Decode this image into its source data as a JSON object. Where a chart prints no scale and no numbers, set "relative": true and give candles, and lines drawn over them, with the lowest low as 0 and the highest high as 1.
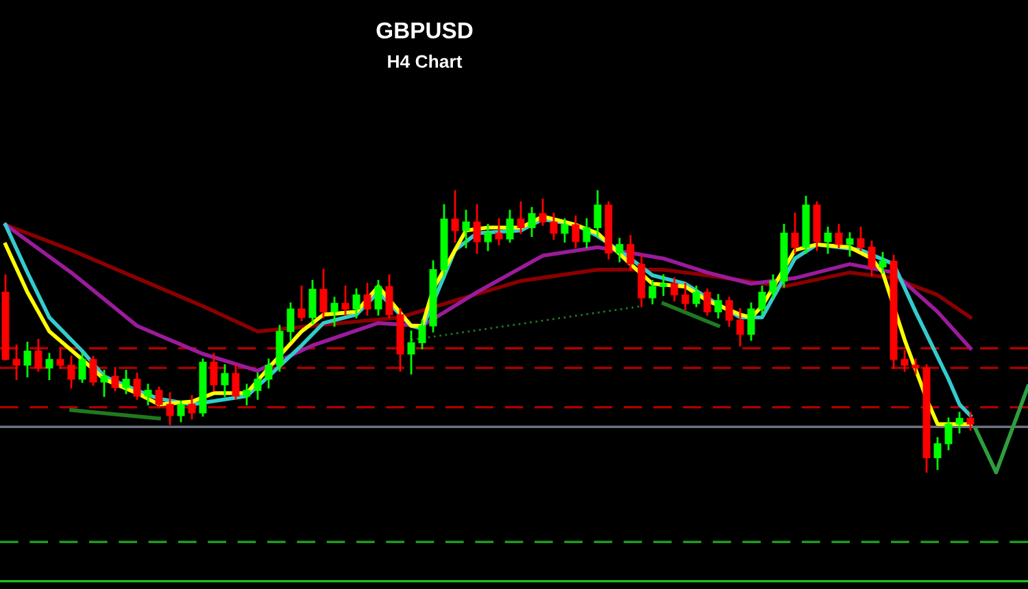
{
  "chart_data": {
    "type": "candlestick",
    "title": "GBPUSD",
    "subtitle": "H4 Chart",
    "relative": true,
    "categories": [
      null,
      null,
      null,
      null,
      null,
      null,
      null,
      null,
      null,
      null,
      null,
      null,
      null,
      null,
      null,
      null,
      null,
      null,
      null,
      null,
      null,
      null,
      null,
      null,
      null,
      null,
      null,
      null,
      null,
      null,
      null,
      null,
      null,
      null,
      null,
      null,
      null,
      null,
      null,
      null,
      null,
      null,
      null,
      null,
      null,
      null,
      null,
      null,
      null,
      null,
      null,
      null,
      null,
      null,
      null,
      null,
      null,
      null,
      null,
      null,
      null,
      null,
      null,
      null,
      null,
      null,
      null,
      null,
      null,
      null,
      null,
      null,
      null,
      null,
      null,
      null,
      null,
      null,
      null,
      null,
      null,
      null,
      null,
      null,
      null,
      null,
      null,
      null,
      null
    ],
    "ohlc": [
      [
        0.64,
        0.7,
        0.4,
        0.4
      ],
      [
        0.4,
        0.45,
        0.33,
        0.38
      ],
      [
        0.38,
        0.46,
        0.34,
        0.43
      ],
      [
        0.43,
        0.47,
        0.36,
        0.37
      ],
      [
        0.37,
        0.42,
        0.33,
        0.4
      ],
      [
        0.4,
        0.44,
        0.37,
        0.38
      ],
      [
        0.38,
        0.41,
        0.3,
        0.33
      ],
      [
        0.33,
        0.42,
        0.32,
        0.4
      ],
      [
        0.4,
        0.41,
        0.31,
        0.32
      ],
      [
        0.32,
        0.36,
        0.27,
        0.34
      ],
      [
        0.34,
        0.37,
        0.29,
        0.3
      ],
      [
        0.3,
        0.36,
        0.28,
        0.33
      ],
      [
        0.33,
        0.35,
        0.26,
        0.27
      ],
      [
        0.27,
        0.31,
        0.24,
        0.29
      ],
      [
        0.29,
        0.3,
        0.23,
        0.24
      ],
      [
        0.24,
        0.28,
        0.17,
        0.2
      ],
      [
        0.2,
        0.25,
        0.18,
        0.24
      ],
      [
        0.24,
        0.27,
        0.19,
        0.21
      ],
      [
        0.21,
        0.4,
        0.2,
        0.39
      ],
      [
        0.39,
        0.42,
        0.29,
        0.31
      ],
      [
        0.31,
        0.38,
        0.27,
        0.35
      ],
      [
        0.35,
        0.38,
        0.26,
        0.27
      ],
      [
        0.27,
        0.31,
        0.24,
        0.29
      ],
      [
        0.29,
        0.35,
        0.26,
        0.33
      ],
      [
        0.33,
        0.4,
        0.3,
        0.38
      ],
      [
        0.38,
        0.52,
        0.36,
        0.5
      ],
      [
        0.5,
        0.6,
        0.47,
        0.58
      ],
      [
        0.58,
        0.66,
        0.54,
        0.55
      ],
      [
        0.55,
        0.68,
        0.53,
        0.65
      ],
      [
        0.65,
        0.72,
        0.55,
        0.57
      ],
      [
        0.57,
        0.62,
        0.52,
        0.6
      ],
      [
        0.6,
        0.66,
        0.56,
        0.58
      ],
      [
        0.58,
        0.65,
        0.55,
        0.63
      ],
      [
        0.63,
        0.67,
        0.56,
        0.58
      ],
      [
        0.58,
        0.68,
        0.56,
        0.66
      ],
      [
        0.66,
        0.7,
        0.55,
        0.56
      ],
      [
        0.56,
        0.58,
        0.36,
        0.42
      ],
      [
        0.42,
        0.5,
        0.35,
        0.46
      ],
      [
        0.46,
        0.54,
        0.44,
        0.52
      ],
      [
        0.52,
        0.75,
        0.5,
        0.72
      ],
      [
        0.72,
        0.95,
        0.7,
        0.9
      ],
      [
        0.9,
        1.0,
        0.82,
        0.86
      ],
      [
        0.86,
        0.93,
        0.8,
        0.89
      ],
      [
        0.89,
        0.95,
        0.78,
        0.82
      ],
      [
        0.82,
        0.88,
        0.79,
        0.85
      ],
      [
        0.85,
        0.9,
        0.81,
        0.83
      ],
      [
        0.83,
        0.93,
        0.82,
        0.9
      ],
      [
        0.9,
        0.96,
        0.85,
        0.87
      ],
      [
        0.87,
        0.94,
        0.84,
        0.92
      ],
      [
        0.92,
        0.97,
        0.88,
        0.89
      ],
      [
        0.89,
        0.92,
        0.83,
        0.85
      ],
      [
        0.85,
        0.9,
        0.82,
        0.88
      ],
      [
        0.88,
        0.91,
        0.8,
        0.82
      ],
      [
        0.82,
        0.9,
        0.8,
        0.87
      ],
      [
        0.87,
        1.0,
        0.84,
        0.95
      ],
      [
        0.95,
        0.96,
        0.76,
        0.78
      ],
      [
        0.78,
        0.83,
        0.75,
        0.81
      ],
      [
        0.81,
        0.84,
        0.72,
        0.74
      ],
      [
        0.74,
        0.77,
        0.59,
        0.62
      ],
      [
        0.62,
        0.68,
        0.6,
        0.66
      ],
      [
        0.66,
        0.7,
        0.63,
        0.67
      ],
      [
        0.67,
        0.69,
        0.61,
        0.63
      ],
      [
        0.63,
        0.67,
        0.58,
        0.6
      ],
      [
        0.6,
        0.66,
        0.59,
        0.64
      ],
      [
        0.64,
        0.65,
        0.56,
        0.57
      ],
      [
        0.57,
        0.63,
        0.55,
        0.61
      ],
      [
        0.61,
        0.62,
        0.52,
        0.54
      ],
      [
        0.54,
        0.58,
        0.45,
        0.49
      ],
      [
        0.49,
        0.6,
        0.47,
        0.58
      ],
      [
        0.58,
        0.66,
        0.56,
        0.64
      ],
      [
        0.64,
        0.7,
        0.62,
        0.68
      ],
      [
        0.68,
        0.88,
        0.66,
        0.85
      ],
      [
        0.85,
        0.92,
        0.78,
        0.8
      ],
      [
        0.8,
        0.98,
        0.78,
        0.95
      ],
      [
        0.95,
        0.96,
        0.79,
        0.82
      ],
      [
        0.82,
        0.87,
        0.78,
        0.85
      ],
      [
        0.85,
        0.88,
        0.8,
        0.81
      ],
      [
        0.81,
        0.85,
        0.77,
        0.83
      ],
      [
        0.83,
        0.87,
        0.79,
        0.8
      ],
      [
        0.8,
        0.82,
        0.7,
        0.73
      ],
      [
        0.73,
        0.78,
        0.71,
        0.75
      ],
      [
        0.75,
        0.77,
        0.37,
        0.4
      ],
      [
        0.4,
        0.43,
        0.36,
        0.38
      ],
      [
        0.38,
        0.4,
        0.35,
        0.37
      ],
      [
        0.37,
        0.38,
        0.0,
        0.05
      ],
      [
        0.05,
        0.12,
        0.01,
        0.1
      ],
      [
        0.1,
        0.19,
        0.08,
        0.17
      ],
      [
        0.17,
        0.21,
        0.14,
        0.19
      ],
      [
        0.19,
        0.21,
        0.15,
        0.17
      ]
    ],
    "series": [
      {
        "type": "line",
        "color": "#8b0000",
        "values": [
          0.88,
          null,
          null,
          null,
          null,
          null,
          0.79,
          null,
          null,
          null,
          null,
          null,
          0.69,
          null,
          null,
          null,
          null,
          null,
          0.59,
          null,
          null,
          null,
          null,
          0.5,
          null,
          null,
          null,
          null,
          0.52,
          null,
          null,
          null,
          null,
          null,
          null,
          null,
          0.55,
          null,
          null,
          null,
          null,
          0.61,
          null,
          null,
          null,
          null,
          null,
          0.68,
          null,
          null,
          null,
          null,
          null,
          null,
          0.72,
          null,
          null,
          null,
          null,
          null,
          0.72,
          null,
          null,
          null,
          0.7,
          null,
          null,
          null,
          null,
          null,
          null,
          0.66,
          null,
          null,
          null,
          null,
          null,
          0.71,
          null,
          null,
          null,
          0.69,
          null,
          null,
          null,
          0.63,
          null,
          null,
          0.55
        ]
      },
      {
        "type": "line",
        "color": "#9b1b9b",
        "values": [
          0.88,
          null,
          null,
          null,
          null,
          null,
          0.71,
          null,
          null,
          null,
          null,
          null,
          0.52,
          null,
          null,
          null,
          null,
          null,
          0.42,
          null,
          null,
          null,
          null,
          0.36,
          null,
          null,
          null,
          null,
          0.45,
          null,
          null,
          null,
          null,
          null,
          0.53,
          null,
          null,
          null,
          0.52,
          null,
          null,
          null,
          null,
          0.64,
          null,
          null,
          null,
          null,
          null,
          0.77,
          null,
          null,
          null,
          null,
          0.8,
          null,
          null,
          null,
          null,
          null,
          0.76,
          null,
          null,
          null,
          0.71,
          null,
          null,
          null,
          0.67,
          null,
          null,
          null,
          0.69,
          null,
          null,
          null,
          null,
          0.74,
          null,
          null,
          null,
          0.71,
          null,
          null,
          null,
          0.57,
          null,
          null,
          0.44
        ]
      },
      {
        "type": "line",
        "color": "#33cccc",
        "values": [
          0.88,
          null,
          0.71,
          null,
          0.55,
          null,
          null,
          0.43,
          null,
          0.34,
          null,
          null,
          0.29,
          null,
          0.26,
          null,
          null,
          0.24,
          null,
          null,
          null,
          null,
          0.27,
          null,
          0.34,
          null,
          null,
          0.45,
          null,
          0.53,
          null,
          null,
          0.56,
          null,
          0.64,
          null,
          null,
          0.52,
          0.51,
          null,
          null,
          0.79,
          null,
          0.85,
          null,
          null,
          null,
          0.86,
          null,
          0.9,
          null,
          null,
          0.88,
          null,
          0.84,
          null,
          null,
          0.76,
          null,
          0.7,
          null,
          null,
          0.67,
          null,
          0.62,
          null,
          null,
          0.55,
          null,
          0.55,
          null,
          null,
          0.76,
          null,
          0.81,
          null,
          null,
          null,
          0.79,
          null,
          null,
          0.74,
          null,
          0.57,
          null,
          null,
          0.33,
          0.24,
          0.2
        ]
      },
      {
        "type": "line",
        "color": "#ffff00",
        "values": [
          0.81,
          null,
          0.64,
          null,
          0.5,
          null,
          null,
          0.4,
          null,
          0.33,
          null,
          null,
          0.28,
          null,
          0.24,
          null,
          null,
          0.25,
          null,
          0.28,
          null,
          null,
          0.28,
          null,
          0.37,
          null,
          null,
          0.5,
          null,
          0.56,
          null,
          null,
          0.57,
          null,
          0.66,
          null,
          null,
          0.52,
          0.52,
          0.65,
          null,
          null,
          0.86,
          null,
          0.87,
          null,
          null,
          0.87,
          null,
          0.91,
          null,
          null,
          0.88,
          null,
          0.85,
          null,
          null,
          0.74,
          null,
          0.67,
          null,
          null,
          0.66,
          null,
          0.61,
          null,
          null,
          0.56,
          0.55,
          0.59,
          null,
          null,
          0.79,
          null,
          0.81,
          null,
          null,
          0.8,
          null,
          0.76,
          0.71,
          null,
          0.47,
          null,
          0.26,
          0.17,
          null,
          null,
          0.17
        ]
      },
      {
        "type": "line",
        "color": "#1f7a1f",
        "line_style": "dotted",
        "values": [
          null,
          null,
          null,
          null,
          null,
          null,
          null,
          null,
          null,
          null,
          null,
          null,
          null,
          null,
          null,
          null,
          null,
          null,
          null,
          null,
          null,
          null,
          null,
          null,
          null,
          null,
          null,
          null,
          null,
          null,
          null,
          null,
          null,
          null,
          null,
          null,
          null,
          0.47,
          null,
          null,
          null,
          null,
          null,
          null,
          null,
          null,
          null,
          null,
          null,
          null,
          null,
          null,
          null,
          null,
          null,
          null,
          null,
          null,
          0.59,
          null,
          null,
          null,
          null,
          null,
          null,
          null,
          null,
          null,
          null,
          null,
          null,
          null,
          null,
          null,
          null,
          null,
          null,
          null,
          null,
          null,
          null,
          null,
          null,
          null,
          null,
          null,
          null,
          null,
          null
        ]
      },
      {
        "type": "line",
        "color": "#1f7a1f",
        "values": [
          null,
          null,
          null,
          null,
          null,
          null,
          0.22,
          null,
          null,
          null,
          null,
          null,
          null,
          null,
          0.19,
          null,
          null,
          null,
          null,
          null,
          null,
          null,
          null,
          null,
          null,
          null,
          null,
          null,
          null,
          null,
          null,
          null,
          null,
          null,
          null,
          null,
          null,
          null,
          null,
          null,
          null,
          null,
          null,
          null,
          null,
          null,
          null,
          null,
          null,
          null,
          null,
          null,
          null,
          null,
          null,
          null,
          null,
          null,
          null,
          null,
          null,
          null,
          null,
          null,
          null,
          null,
          null,
          null,
          null,
          null,
          null,
          null,
          null,
          null,
          null,
          null,
          null,
          null,
          null,
          null,
          null,
          null,
          null,
          null,
          null,
          null,
          null,
          null,
          null
        ]
      },
      {
        "type": "line",
        "color": "#1f7a1f",
        "values": [
          null,
          null,
          null,
          null,
          null,
          null,
          null,
          null,
          null,
          null,
          null,
          null,
          null,
          null,
          null,
          null,
          null,
          null,
          null,
          null,
          null,
          null,
          null,
          null,
          null,
          null,
          null,
          null,
          null,
          null,
          null,
          null,
          null,
          null,
          null,
          null,
          null,
          null,
          null,
          null,
          null,
          null,
          null,
          null,
          null,
          null,
          null,
          null,
          null,
          null,
          null,
          null,
          null,
          null,
          null,
          null,
          null,
          null,
          null,
          null,
          0.6,
          null,
          null,
          null,
          null,
          0.52,
          null,
          null,
          null,
          null,
          null,
          null,
          null,
          null,
          null,
          null,
          null,
          null,
          null,
          null,
          null,
          null,
          null,
          null,
          null,
          null,
          null,
          null,
          null
        ]
      }
    ],
    "ref_lines": [
      {
        "axis": "y",
        "value": 0.44,
        "color": "#b00000",
        "line_style": "dashed"
      },
      {
        "axis": "y",
        "value": 0.37,
        "color": "#b00000",
        "line_style": "dashed"
      },
      {
        "axis": "y",
        "value": 0.23,
        "color": "#b00000",
        "line_style": "dashed"
      },
      {
        "axis": "y",
        "value": 0.16,
        "color": "#6b7280",
        "line_style": "solid"
      },
      {
        "axis": "y",
        "value": -0.25,
        "color": "#1f9a1f",
        "line_style": "dashed"
      },
      {
        "axis": "y",
        "value": -0.39,
        "color": "#1fbf1f",
        "line_style": "solid"
      }
    ]
  }
}
